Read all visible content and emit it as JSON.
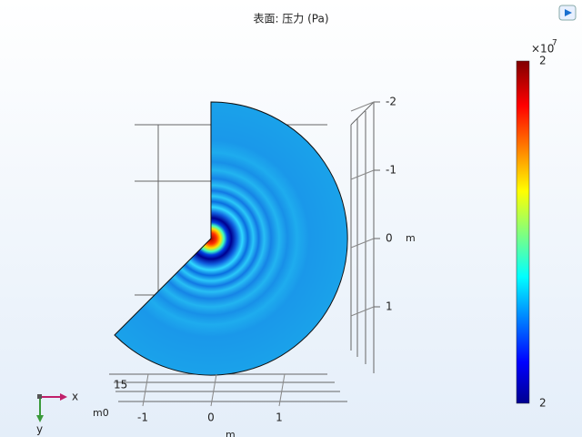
{
  "chart_data": {
    "type": "surface",
    "title": "表面: 压力 (Pa)",
    "ylim": [
      -2,
      2
    ],
    "yticks": [
      -2,
      -1,
      0,
      1
    ],
    "y_unit": "m",
    "xlim": [
      -1.4,
      2
    ],
    "xticks": [
      -1,
      0,
      1
    ],
    "x_unit": "m",
    "z_labels": [
      "15",
      "m0"
    ],
    "colorbar": {
      "exponent_base": "×10",
      "exponent": "7",
      "tick_labels": [
        "2",
        "2"
      ],
      "colormap": "rainbow"
    },
    "triad": {
      "x": "x",
      "y": "y"
    }
  }
}
